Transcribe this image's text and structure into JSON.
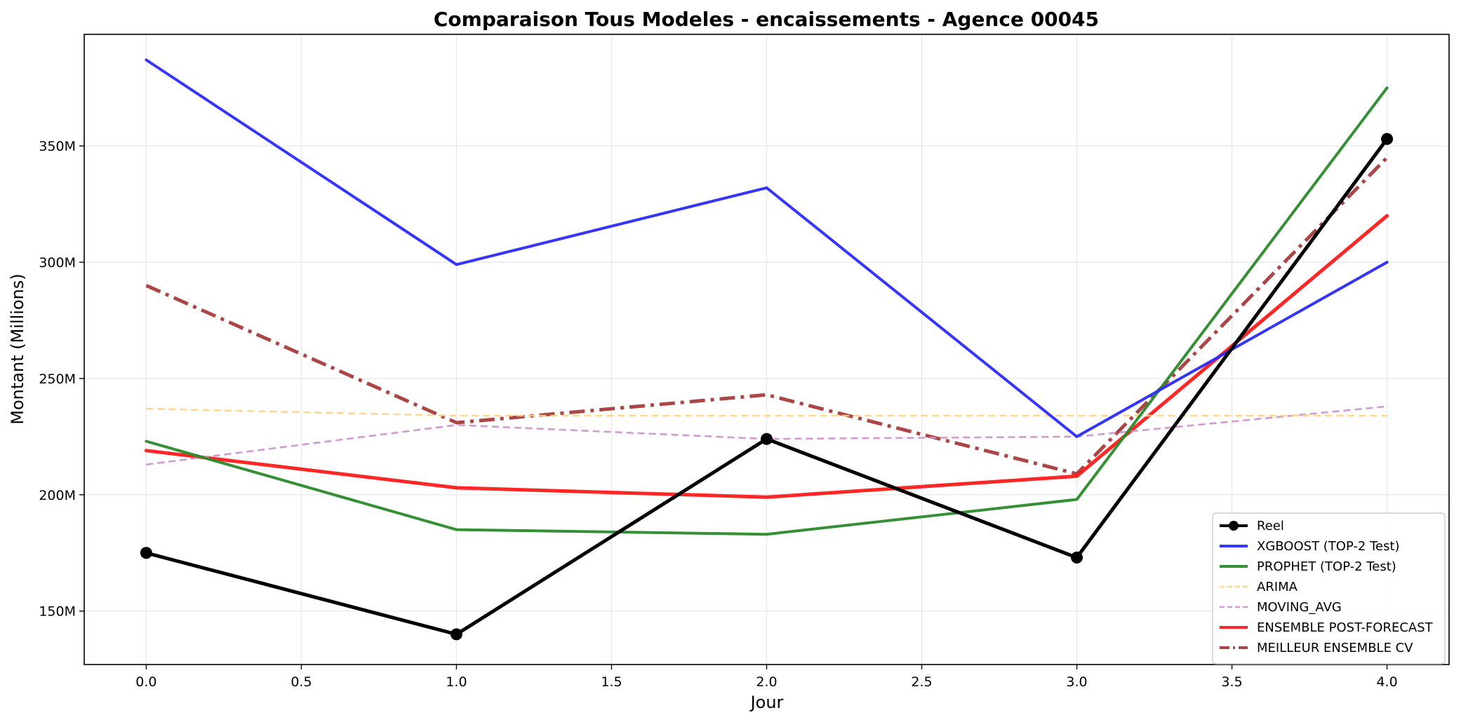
{
  "chart_data": {
    "type": "line",
    "title": "Comparaison Tous Modeles - encaissements - Agence 00045",
    "xlabel": "Jour",
    "ylabel": "Montant (Millions)",
    "x": [
      0,
      1,
      2,
      3,
      4
    ],
    "xlim": [
      -0.2,
      4.2
    ],
    "ylim": [
      127,
      398
    ],
    "xticks": [
      0.0,
      0.5,
      1.0,
      1.5,
      2.0,
      2.5,
      3.0,
      3.5,
      4.0
    ],
    "xtick_labels": [
      "0.0",
      "0.5",
      "1.0",
      "1.5",
      "2.0",
      "2.5",
      "3.0",
      "3.5",
      "4.0"
    ],
    "yticks": [
      150,
      200,
      250,
      300,
      350
    ],
    "ytick_labels": [
      "150M",
      "200M",
      "250M",
      "300M",
      "350M"
    ],
    "grid": true,
    "legend_position": "lower-right",
    "series": [
      {
        "name": "Reel",
        "values": [
          175,
          140,
          224,
          173,
          353
        ],
        "color": "#000000",
        "style": "solid",
        "marker": "circle"
      },
      {
        "name": "XGBOOST (TOP-2 Test)",
        "values": [
          387,
          299,
          332,
          225,
          300
        ],
        "color": "#2a2aff",
        "style": "solid"
      },
      {
        "name": "PROPHET (TOP-2 Test)",
        "values": [
          223,
          185,
          183,
          198,
          375
        ],
        "color": "#2a8a2a",
        "style": "solid"
      },
      {
        "name": "ARIMA",
        "values": [
          237,
          234,
          234,
          234,
          234
        ],
        "color": "#ffd08a",
        "style": "dashed"
      },
      {
        "name": "MOVING_AVG",
        "values": [
          213,
          230,
          224,
          225,
          238
        ],
        "color": "#cc8fcc",
        "style": "dashed"
      },
      {
        "name": "ENSEMBLE POST-FORECAST",
        "values": [
          219,
          203,
          199,
          208,
          320
        ],
        "color": "#ff1a1a",
        "style": "solid"
      },
      {
        "name": "MEILLEUR ENSEMBLE CV",
        "values": [
          290,
          231,
          243,
          209,
          345
        ],
        "color": "#a83c3c",
        "style": "dashdot"
      }
    ]
  }
}
